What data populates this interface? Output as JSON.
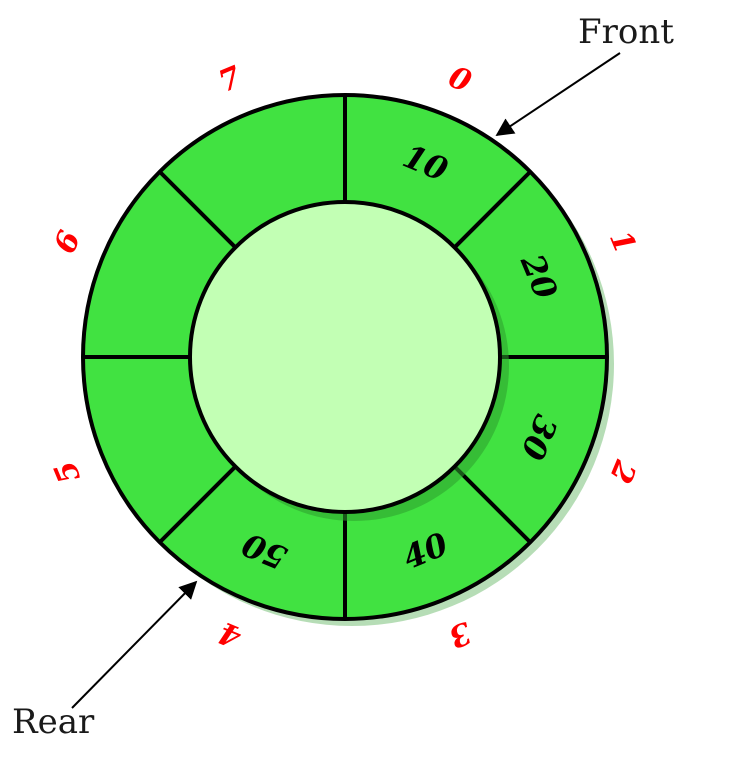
{
  "queue": {
    "slots": [
      {
        "index": "0",
        "value": "10"
      },
      {
        "index": "1",
        "value": "20"
      },
      {
        "index": "2",
        "value": "30"
      },
      {
        "index": "3",
        "value": "40"
      },
      {
        "index": "4",
        "value": "50"
      },
      {
        "index": "5",
        "value": ""
      },
      {
        "index": "6",
        "value": ""
      },
      {
        "index": "7",
        "value": ""
      }
    ]
  },
  "pointers": {
    "front": {
      "label": "Front",
      "slot": 0
    },
    "rear": {
      "label": "Rear",
      "slot": 4
    }
  },
  "colors": {
    "ring_fill": "#41e241",
    "inner_fill": "#c2ffb4",
    "outline": "#000000",
    "index_label": "#ff0000",
    "shadow": "#2e9e2e"
  }
}
